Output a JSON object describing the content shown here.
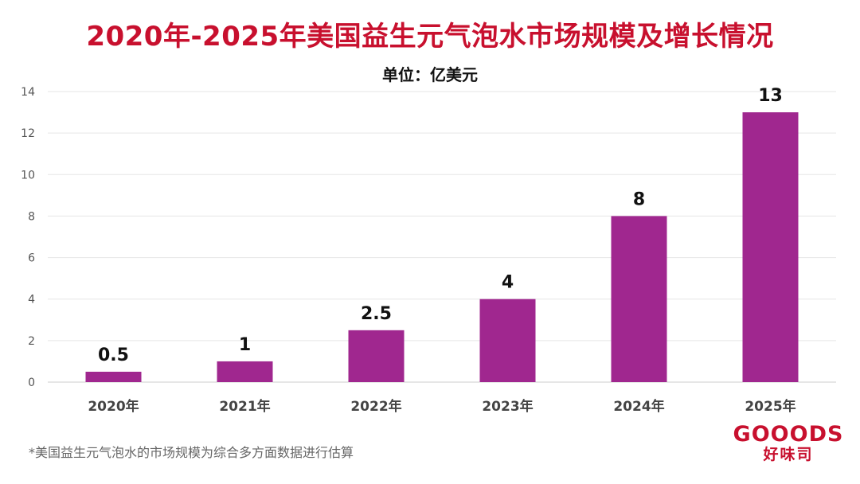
{
  "chart_data": {
    "type": "bar",
    "title": "2020年-2025年美国益生元气泡水市场规模及增长情况",
    "subtitle": "单位：亿美元",
    "categories": [
      "2020年",
      "2021年",
      "2022年",
      "2023年",
      "2024年",
      "2025年"
    ],
    "values": [
      0.5,
      1,
      2.5,
      4,
      8,
      13
    ],
    "value_labels": [
      "0.5",
      "1",
      "2.5",
      "4",
      "8",
      "13"
    ],
    "yticks": [
      "0",
      "2",
      "4",
      "6",
      "8",
      "10",
      "12",
      "14"
    ],
    "ylim": [
      0,
      14
    ],
    "grid": true,
    "bar_color": "#a0278f"
  },
  "footnote": "*美国益生元气泡水的市场规模为综合多方面数据进行估算",
  "brand": {
    "en": "GOOODS",
    "cn": "好味司"
  },
  "colors": {
    "title": "#c8102e",
    "brand": "#c8102e"
  }
}
